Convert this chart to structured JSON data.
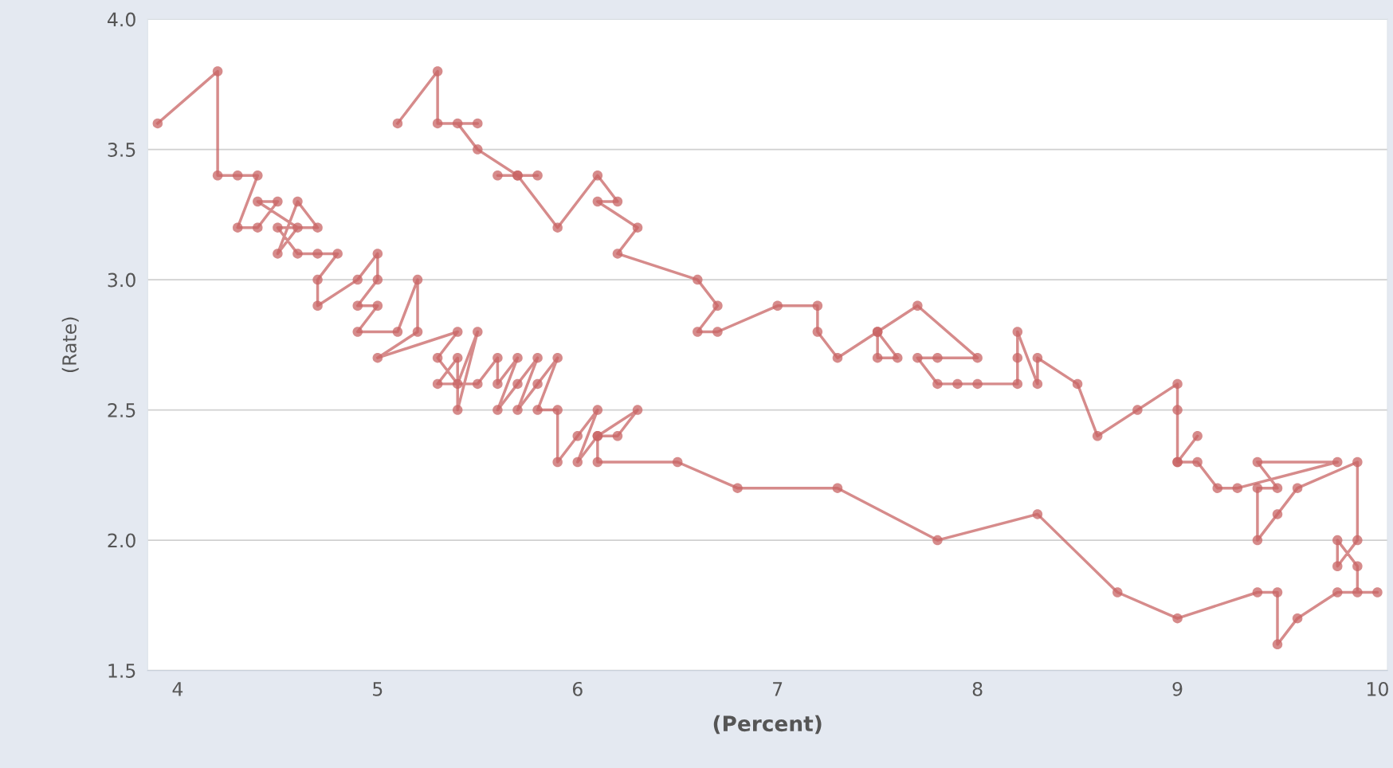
{
  "chart_data": {
    "type": "line",
    "xlabel": "(Percent)",
    "ylabel": "(Rate)",
    "series": [
      {
        "color": "#c86464",
        "x": [
          3.9,
          4.2,
          4.2,
          4.3,
          4.4,
          4.3,
          4.4,
          4.5,
          4.4,
          4.6,
          4.5,
          4.6,
          4.7,
          4.5,
          4.6,
          4.7,
          4.8,
          4.7,
          4.7,
          4.9,
          5.0,
          5.0,
          4.9,
          5.0,
          4.9,
          5.1,
          5.2,
          5.2,
          5.0,
          5.4,
          5.3,
          5.4,
          5.5,
          5.4,
          5.4,
          5.3,
          5.5,
          5.6,
          5.6,
          5.7,
          5.6,
          5.7,
          5.8,
          5.7,
          5.8,
          5.9,
          5.8,
          5.9,
          5.9,
          6.0,
          6.1,
          6.0,
          6.1,
          6.3,
          6.2,
          6.1,
          6.1,
          6.5,
          6.8,
          7.3,
          7.8,
          8.3,
          8.7,
          9.0,
          9.4,
          9.5,
          9.5,
          9.6,
          9.8,
          10.0,
          9.9,
          9.9,
          9.8,
          9.8,
          9.9,
          9.9,
          9.6,
          9.5,
          9.4,
          9.4,
          9.5,
          9.4,
          9.8,
          9.3,
          9.2,
          9.1,
          9.0,
          9.1,
          9.0,
          9.0,
          9.0,
          8.8,
          8.6,
          8.5,
          8.3,
          8.3,
          8.2,
          8.2,
          8.2,
          8.0,
          7.9,
          7.8,
          7.7,
          7.8,
          8.0,
          7.7,
          7.5,
          7.6,
          7.5,
          7.5,
          7.3,
          7.2,
          7.2,
          7.0,
          6.7,
          6.6,
          6.7,
          6.6,
          6.2,
          6.3,
          6.1,
          6.2,
          6.1,
          5.9,
          5.7,
          5.8,
          5.6,
          5.7,
          5.5,
          5.4,
          5.5,
          5.3,
          5.3,
          5.1
        ],
        "values": [
          3.6,
          3.8,
          3.4,
          3.4,
          3.4,
          3.2,
          3.2,
          3.3,
          3.3,
          3.2,
          3.1,
          3.3,
          3.2,
          3.2,
          3.1,
          3.1,
          3.1,
          3.0,
          2.9,
          3.0,
          3.1,
          3.0,
          2.9,
          2.9,
          2.8,
          2.8,
          3.0,
          2.8,
          2.7,
          2.8,
          2.7,
          2.6,
          2.8,
          2.5,
          2.7,
          2.6,
          2.6,
          2.7,
          2.6,
          2.7,
          2.5,
          2.6,
          2.7,
          2.5,
          2.6,
          2.7,
          2.5,
          2.5,
          2.3,
          2.4,
          2.5,
          2.3,
          2.4,
          2.5,
          2.4,
          2.4,
          2.3,
          2.3,
          2.2,
          2.2,
          2.0,
          2.1,
          1.8,
          1.7,
          1.8,
          1.8,
          1.6,
          1.7,
          1.8,
          1.8,
          1.8,
          1.9,
          2.0,
          1.9,
          2.0,
          2.3,
          2.2,
          2.1,
          2.0,
          2.2,
          2.2,
          2.3,
          2.3,
          2.2,
          2.2,
          2.3,
          2.3,
          2.4,
          2.3,
          2.5,
          2.6,
          2.5,
          2.4,
          2.6,
          2.7,
          2.6,
          2.8,
          2.7,
          2.6,
          2.6,
          2.6,
          2.6,
          2.7,
          2.7,
          2.7,
          2.9,
          2.8,
          2.7,
          2.7,
          2.8,
          2.7,
          2.8,
          2.9,
          2.9,
          2.8,
          2.8,
          2.9,
          3.0,
          3.1,
          3.2,
          3.3,
          3.3,
          3.4,
          3.2,
          3.4,
          3.4,
          3.4,
          3.4,
          3.5,
          3.6,
          3.6,
          3.6,
          3.8,
          3.6
        ]
      }
    ],
    "xlim": [
      3.85,
      10.05
    ],
    "xticks": [
      4,
      5,
      6,
      7,
      8,
      9,
      10
    ],
    "ylim": [
      1.5,
      4.0
    ],
    "yticks": [
      1.5,
      {
        "value": 2,
        "label": "2.0"
      },
      2.5,
      {
        "value": 3,
        "label": "3.0"
      },
      3.5,
      {
        "value": 4,
        "label": "4.0"
      }
    ],
    "grid": "y",
    "marker": "circle",
    "line_style": "solid",
    "legend": false
  }
}
